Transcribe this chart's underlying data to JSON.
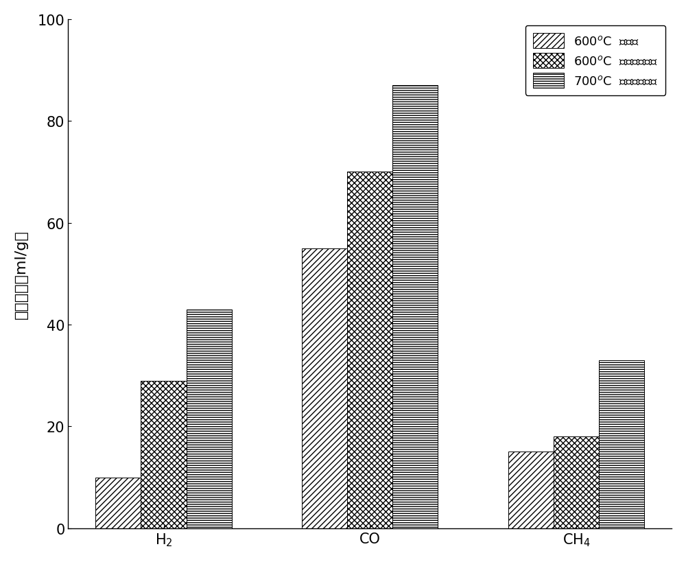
{
  "categories_latex": [
    "H$_2$",
    "CO",
    "CH$_4$"
  ],
  "series": [
    {
      "values": [
        10,
        55,
        15
      ],
      "hatch": "////",
      "facecolor": "white",
      "edgecolor": "black"
    },
    {
      "values": [
        29,
        70,
        18
      ],
      "hatch": "xxxx",
      "facecolor": "white",
      "edgecolor": "black"
    },
    {
      "values": [
        43,
        87,
        33
      ],
      "hatch": "-----",
      "facecolor": "white",
      "edgecolor": "black"
    }
  ],
  "ylim": [
    0,
    100
  ],
  "yticks": [
    0,
    20,
    40,
    60,
    80,
    100
  ],
  "bar_width": 0.22,
  "background_color": "white",
  "label_fontsize": 16,
  "tick_fontsize": 15,
  "legend_fontsize": 13
}
